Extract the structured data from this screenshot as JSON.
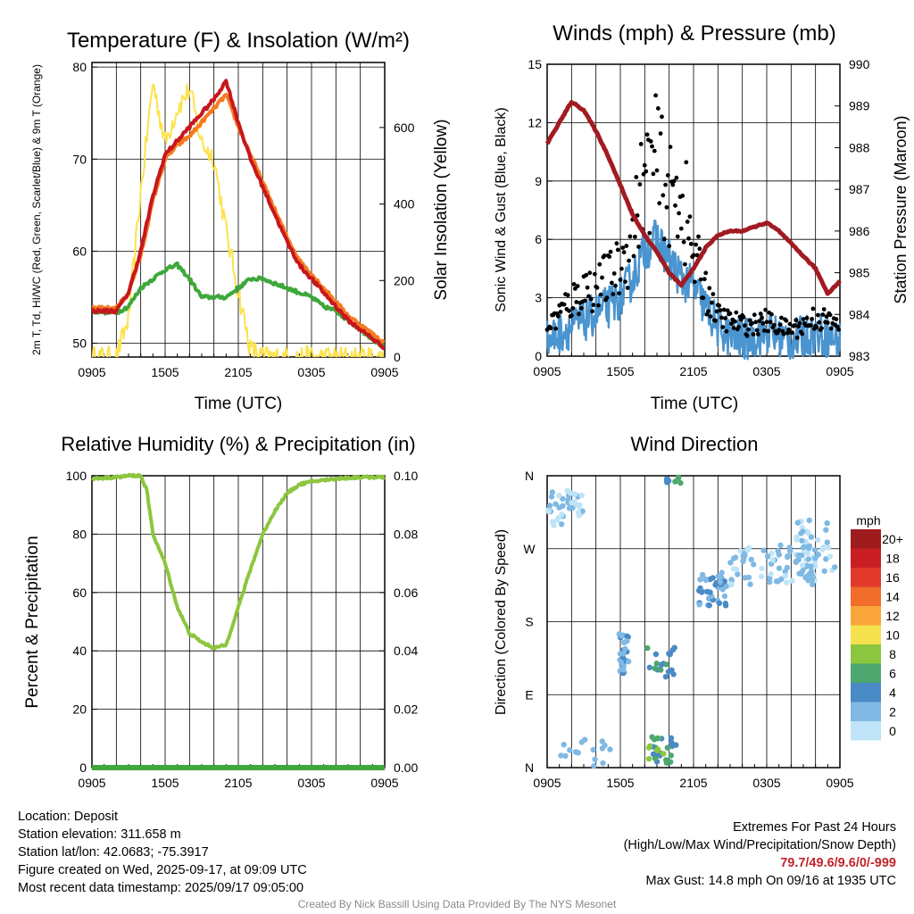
{
  "colors": {
    "temp_red": "#c8161d",
    "temp_green": "#3ea83a",
    "temp_orange": "#f57b22",
    "insolation_yellow": "#fce24e",
    "wind_blue": "#4a94cf",
    "gust_black": "#000000",
    "pressure_maroon": "#a21a22",
    "rh_green": "#8cc63e",
    "precip_green": "#3ea83a",
    "extremes_red": "#c0262d",
    "credit_gray": "#8a8a8a"
  },
  "chart_data": [
    {
      "id": "temperature",
      "type": "line",
      "title": "Temperature (F) & Insolation (W/m²)",
      "xlabel": "Time (UTC)",
      "x_ticks": [
        "0905",
        "1505",
        "2105",
        "0305",
        "0905"
      ],
      "ylabel_left": "2m T, Td, HI/WC (Red, Green, Scarlet/Blue) & 9m T (Orange)",
      "ylabel_right": "Solar Insolation (Yellow)",
      "ylim_left": [
        48.5,
        80.5
      ],
      "ylim_right": [
        0,
        770
      ],
      "yticks_left": [
        50,
        60,
        70,
        80
      ],
      "yticks_right": [
        0,
        200,
        400,
        600
      ],
      "x_hours": [
        0,
        2,
        3,
        4,
        5,
        6,
        7,
        8,
        9,
        10,
        11,
        12,
        13,
        14,
        15,
        16,
        17,
        18,
        19,
        20,
        21,
        22,
        23,
        24
      ],
      "series": [
        {
          "name": "2m T",
          "axis": "left",
          "color": "#c8161d",
          "values": [
            53.5,
            53.5,
            55.5,
            60,
            66,
            70.5,
            72,
            73.5,
            75,
            76.5,
            78.5,
            74,
            70,
            67,
            64,
            61,
            58.5,
            57,
            55.5,
            54,
            52.5,
            51.5,
            50.5,
            49.5
          ]
        },
        {
          "name": "9m T",
          "axis": "left",
          "color": "#f57b22",
          "values": [
            53.8,
            53.8,
            55.5,
            59.5,
            65.5,
            70,
            71.5,
            72.5,
            74,
            75.5,
            77,
            73.5,
            70.5,
            67.5,
            64.5,
            61.5,
            59,
            57.5,
            56,
            54.5,
            53,
            52,
            51,
            50
          ]
        },
        {
          "name": "Td",
          "axis": "left",
          "color": "#3ea83a",
          "values": [
            53.5,
            53.3,
            54,
            56,
            57,
            58,
            58.5,
            57,
            55,
            55,
            55,
            56,
            57,
            57,
            56.5,
            56,
            55.5,
            55,
            54,
            53.5,
            52.5,
            51.5,
            50.5,
            49.5
          ]
        },
        {
          "name": "Insolation",
          "axis": "right",
          "color": "#fce24e",
          "values": [
            0,
            0,
            100,
            430,
            720,
            560,
            650,
            700,
            560,
            520,
            330,
            170,
            20,
            0,
            0,
            0,
            0,
            0,
            0,
            0,
            0,
            0,
            0,
            0
          ]
        }
      ]
    },
    {
      "id": "winds",
      "type": "line",
      "title": "Winds (mph) & Pressure (mb)",
      "xlabel": "Time (UTC)",
      "x_ticks": [
        "0905",
        "1505",
        "2105",
        "0305",
        "0905"
      ],
      "ylabel_left": "Sonic Wind & Gust (Blue, Black)",
      "ylabel_right": "Station Pressure (Maroon)",
      "ylim_left": [
        0,
        15
      ],
      "ylim_right": [
        983,
        990
      ],
      "yticks_left": [
        0,
        3,
        6,
        9,
        12,
        15
      ],
      "yticks_right": [
        983,
        984,
        985,
        986,
        987,
        988,
        989,
        990
      ],
      "x_hours": [
        0,
        1,
        2,
        3,
        4,
        5,
        6,
        7,
        8,
        9,
        10,
        11,
        12,
        13,
        14,
        15,
        16,
        17,
        18,
        19,
        20,
        21,
        22,
        23,
        24
      ],
      "series": [
        {
          "name": "Sonic Wind",
          "axis": "left",
          "color": "#4a94cf",
          "values": [
            0.8,
            1.2,
            1.5,
            1.8,
            2.2,
            2.5,
            3.0,
            4.0,
            5.5,
            6.0,
            5.0,
            4.0,
            3.5,
            2.5,
            1.5,
            1.0,
            0.8,
            1.0,
            1.2,
            1.0,
            0.8,
            1.0,
            1.2,
            1.0,
            0.8
          ]
        },
        {
          "name": "Gust",
          "axis": "left",
          "color": "#000000",
          "values": [
            1.5,
            2.2,
            2.8,
            3.5,
            3.5,
            4.0,
            4.5,
            6.5,
            9.0,
            10.0,
            8.0,
            8.5,
            5.0,
            3.5,
            2.0,
            1.8,
            1.6,
            1.6,
            1.8,
            1.5,
            1.4,
            1.6,
            2.0,
            1.8,
            1.5
          ]
        },
        {
          "name": "Pressure",
          "axis": "right",
          "color": "#a21a22",
          "values": [
            988.1,
            988.6,
            989.1,
            988.9,
            988.4,
            987.8,
            987.1,
            986.4,
            985.9,
            985.5,
            985.0,
            984.7,
            985.1,
            985.6,
            985.9,
            986.0,
            986.0,
            986.1,
            986.2,
            986.0,
            985.7,
            985.4,
            985.1,
            984.5,
            984.8
          ]
        }
      ]
    },
    {
      "id": "humidity",
      "type": "line",
      "title": "Relative Humidity (%) & Precipitation (in)",
      "xlabel": "",
      "x_ticks": [
        "0905",
        "1505",
        "2105",
        "0305",
        "0905"
      ],
      "ylabel_left": "Percent & Precipitation",
      "ylim_left": [
        0,
        100
      ],
      "ylim_right": [
        0,
        0.1
      ],
      "yticks_left": [
        0,
        20,
        40,
        60,
        80,
        100
      ],
      "yticks_right": [
        "0.00",
        "0.02",
        "0.04",
        "0.06",
        "0.08",
        "0.10"
      ],
      "x_hours": [
        0,
        2,
        3,
        4,
        4.5,
        5,
        6,
        7,
        8,
        9,
        10,
        11,
        12,
        13,
        14,
        15,
        16,
        17,
        18,
        20,
        22,
        24
      ],
      "series": [
        {
          "name": "RH",
          "axis": "left",
          "color": "#8cc63e",
          "values": [
            99,
            99.5,
            100,
            100,
            95,
            80,
            70,
            55,
            46,
            43,
            41,
            42,
            55,
            68,
            80,
            88,
            94,
            97,
            98,
            99,
            99.5,
            99.5
          ]
        },
        {
          "name": "Precipitation",
          "axis": "right",
          "color": "#3ea83a",
          "values": [
            0,
            0,
            0,
            0,
            0,
            0,
            0,
            0,
            0,
            0,
            0,
            0,
            0,
            0,
            0,
            0,
            0,
            0,
            0,
            0,
            0,
            0
          ]
        }
      ]
    },
    {
      "id": "direction",
      "type": "scatter",
      "title": "Wind Direction",
      "ylabel_left": "Direction (Colored By Speed)",
      "x_ticks": [
        "0905",
        "1505",
        "2105",
        "0305",
        "0905"
      ],
      "yticks_left": [
        "N",
        "E",
        "S",
        "W",
        "N"
      ],
      "ylim_left": [
        0,
        360
      ],
      "colorbar": {
        "title": "mph",
        "labels": [
          "0",
          "2",
          "4",
          "6",
          "8",
          "10",
          "12",
          "14",
          "16",
          "18",
          "20+"
        ],
        "colors": [
          "#bfe4f7",
          "#7fb9e4",
          "#4a8ac6",
          "#4da76e",
          "#8cc63e",
          "#f3e14d",
          "#f9a53a",
          "#f26c2a",
          "#e23a2a",
          "#c81e24",
          "#9e1b1e"
        ]
      },
      "clusters": [
        {
          "t": 1.5,
          "deg": 320,
          "n": 40,
          "spread": [
            1.5,
            22
          ],
          "speed": [
            0,
            2
          ]
        },
        {
          "t": 6.3,
          "deg": 140,
          "n": 30,
          "spread": [
            0.4,
            25
          ],
          "speed": [
            1,
            4
          ]
        },
        {
          "t": 9.4,
          "deg": 130,
          "n": 20,
          "spread": [
            1.2,
            18
          ],
          "speed": [
            2,
            7
          ]
        },
        {
          "t": 9.4,
          "deg": 20,
          "n": 30,
          "spread": [
            1.2,
            18
          ],
          "speed": [
            3,
            9
          ]
        },
        {
          "t": 10.5,
          "deg": 355,
          "n": 8,
          "spread": [
            0.8,
            5
          ],
          "speed": [
            3,
            6
          ]
        },
        {
          "t": 13.5,
          "deg": 220,
          "n": 40,
          "spread": [
            1.2,
            22
          ],
          "speed": [
            1,
            5
          ]
        },
        {
          "t": 18.5,
          "deg": 250,
          "n": 80,
          "spread": [
            3.5,
            25
          ],
          "speed": [
            0,
            3
          ]
        },
        {
          "t": 22.0,
          "deg": 270,
          "n": 40,
          "spread": [
            1.6,
            35
          ],
          "speed": [
            0,
            2
          ]
        },
        {
          "t": 2.0,
          "deg": 20,
          "n": 8,
          "spread": [
            1.5,
            15
          ],
          "speed": [
            1,
            3
          ]
        },
        {
          "t": 4.5,
          "deg": 20,
          "n": 8,
          "spread": [
            1.0,
            20
          ],
          "speed": [
            1,
            3
          ]
        }
      ]
    }
  ],
  "info_left": {
    "location": "Location: Deposit",
    "elevation": "Station elevation: 311.658 m",
    "latlon": "Station lat/lon: 42.0683; -75.3917",
    "created": "Figure created on Wed, 2025-09-17, at 09:09 UTC",
    "timestamp": "Most recent data timestamp: 2025/09/17 09:05:00"
  },
  "info_right": {
    "title": "Extremes For Past 24 Hours",
    "subtitle": "(High/Low/Max Wind/Precipitation/Snow Depth)",
    "values": "79.7/49.6/9.6/0/-999",
    "max_gust": "Max Gust: 14.8 mph On 09/16 at 1935 UTC"
  },
  "credit": "Created By Nick Bassill Using Data Provided By The NYS Mesonet"
}
